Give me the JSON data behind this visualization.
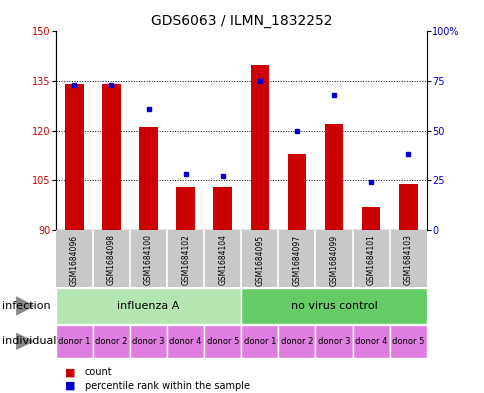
{
  "title": "GDS6063 / ILMN_1832252",
  "samples": [
    "GSM1684096",
    "GSM1684098",
    "GSM1684100",
    "GSM1684102",
    "GSM1684104",
    "GSM1684095",
    "GSM1684097",
    "GSM1684099",
    "GSM1684101",
    "GSM1684103"
  ],
  "counts": [
    134,
    134,
    121,
    103,
    103,
    140,
    113,
    122,
    97,
    104
  ],
  "percentiles": [
    73,
    73,
    61,
    28,
    27,
    75,
    50,
    68,
    24,
    38
  ],
  "ylim_left": [
    90,
    150
  ],
  "ylim_right": [
    0,
    100
  ],
  "yticks_left": [
    90,
    105,
    120,
    135,
    150
  ],
  "yticks_right": [
    0,
    25,
    50,
    75,
    100
  ],
  "ytick_right_labels": [
    "0",
    "25",
    "50",
    "75",
    "100%"
  ],
  "bar_color": "#cc0000",
  "dot_color": "#0000cc",
  "infection_groups": [
    {
      "label": "influenza A",
      "start": 0,
      "end": 5,
      "color": "#b3e6b3"
    },
    {
      "label": "no virus control",
      "start": 5,
      "end": 10,
      "color": "#66cc66"
    }
  ],
  "individuals": [
    "donor 1",
    "donor 2",
    "donor 3",
    "donor 4",
    "donor 5",
    "donor 1",
    "donor 2",
    "donor 3",
    "donor 4",
    "donor 5"
  ],
  "individual_color": "#e07de0",
  "sample_bg_color": "#c8c8c8",
  "legend_count_color": "#cc0000",
  "legend_dot_color": "#0000cc",
  "infection_label": "infection",
  "individual_label": "individual",
  "title_fontsize": 10,
  "tick_fontsize": 7,
  "label_fontsize": 8,
  "sample_fontsize": 5.5,
  "donor_fontsize": 6,
  "legend_fontsize": 7,
  "bar_width": 0.5
}
